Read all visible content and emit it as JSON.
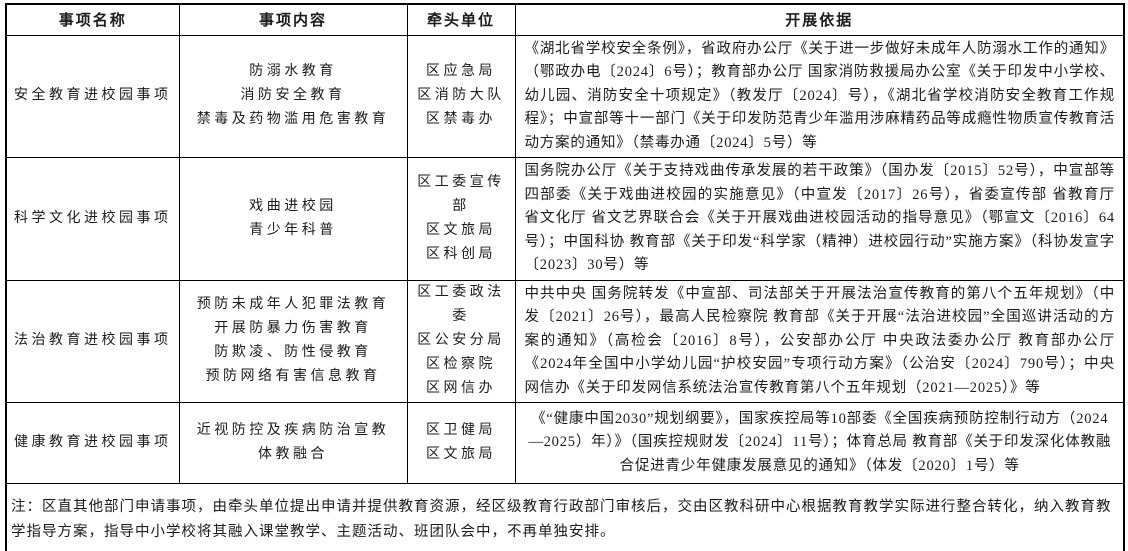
{
  "colors": {
    "border": "#000000",
    "text": "#1c1c1c",
    "background": "#ffffff"
  },
  "table": {
    "headers": [
      "事项名称",
      "事项内容",
      "牵头单位",
      "开展依据"
    ],
    "rows": [
      {
        "name": "安全教育进校园事项",
        "content_lines": [
          "防溺水教育",
          "消防安全教育",
          "禁毒及药物滥用危害教育"
        ],
        "lead_units": [
          "区应急局",
          "区消防大队",
          "区禁毒办"
        ],
        "basis": "《湖北省学校安全条例》，省政府办公厅《关于进一步做好未成年人防溺水工作的通知》（鄂政办电〔2024〕6号）；教育部办公厅 国家消防救援局办公室《关于印发中小学校、幼儿园、消防安全十项规定》（教发厅〔2024〕号），《湖北省学校消防安全教育工作规程》；中宣部等十一部门《关于印发防范青少年滥用涉麻精药品等成瘾性物质宣传教育活动方案的通知》（禁毒办通〔2024〕5号）等"
      },
      {
        "name": "科学文化进校园事项",
        "content_lines": [
          "戏曲进校园",
          "青少年科普"
        ],
        "lead_units": [
          "区工委宣传部",
          "区文旅局",
          "区科创局"
        ],
        "basis": "国务院办公厅《关于支持戏曲传承发展的若干政策》（国办发〔2015〕52号），中宣部等四部委《关于戏曲进校园的实施意见》（中宣发〔2017〕26号），省委宣传部 省教育厅 省文化厅 省文艺界联合会《关于开展戏曲进校园活动的指导意见》（鄂宣文〔2016〕64号）；中国科协 教育部《关于印发“科学家（精神）进校园行动”实施方案》（科协发宣字〔2023〕30号）等"
      },
      {
        "name": "法治教育进校园事项",
        "content_lines": [
          "预防未成年人犯罪法教育",
          "开展防暴力伤害教育",
          "防欺凌、防性侵教育",
          "预防网络有害信息教育"
        ],
        "lead_units": [
          "区工委政法委",
          "区公安分局",
          "区检察院",
          "区网信办"
        ],
        "basis": "中共中央 国务院转发《中宣部、司法部关于开展法治宣传教育的第八个五年规划》（中发〔2021〕26号），最高人民检察院 教育部《关于开展“法治进校园”全国巡讲活动的方案的通知》（高检会〔2016〕8号），公安部办公厅 中央政法委办公厅 教育部办公厅《2024年全国中小学幼儿园“护校安园”专项行动方案》（公治安〔2024〕790号）；中央网信办《关于印发网信系统法治宣传教育第八个五年规划（2021—2025）》等"
      },
      {
        "name": "健康教育进校园事项",
        "content_lines": [
          "近视防控及疾病防治宣教",
          "体教融合"
        ],
        "lead_units": [
          "区卫健局",
          "区文旅局"
        ],
        "basis": "《“健康中国2030”规划纲要》，国家疾控局等10部委《全国疾病预防控制行动方（2024—2025）年）》（国疾控规财发〔2024〕11号）；体育总局 教育部《关于印发深化体教融合促进青少年健康发展意见的通知》（体发〔2020〕1号）等"
      }
    ],
    "note": "注：区直其他部门申请事项，由牵头单位提出申请并提供教育资源，经区级教育行政部门审核后，交由区教科研中心根据教育教学实际进行整合转化，纳入教育教学指导方案，指导中小学校将其融入课堂教学、主题活动、班团队会中，不再单独安排。"
  }
}
